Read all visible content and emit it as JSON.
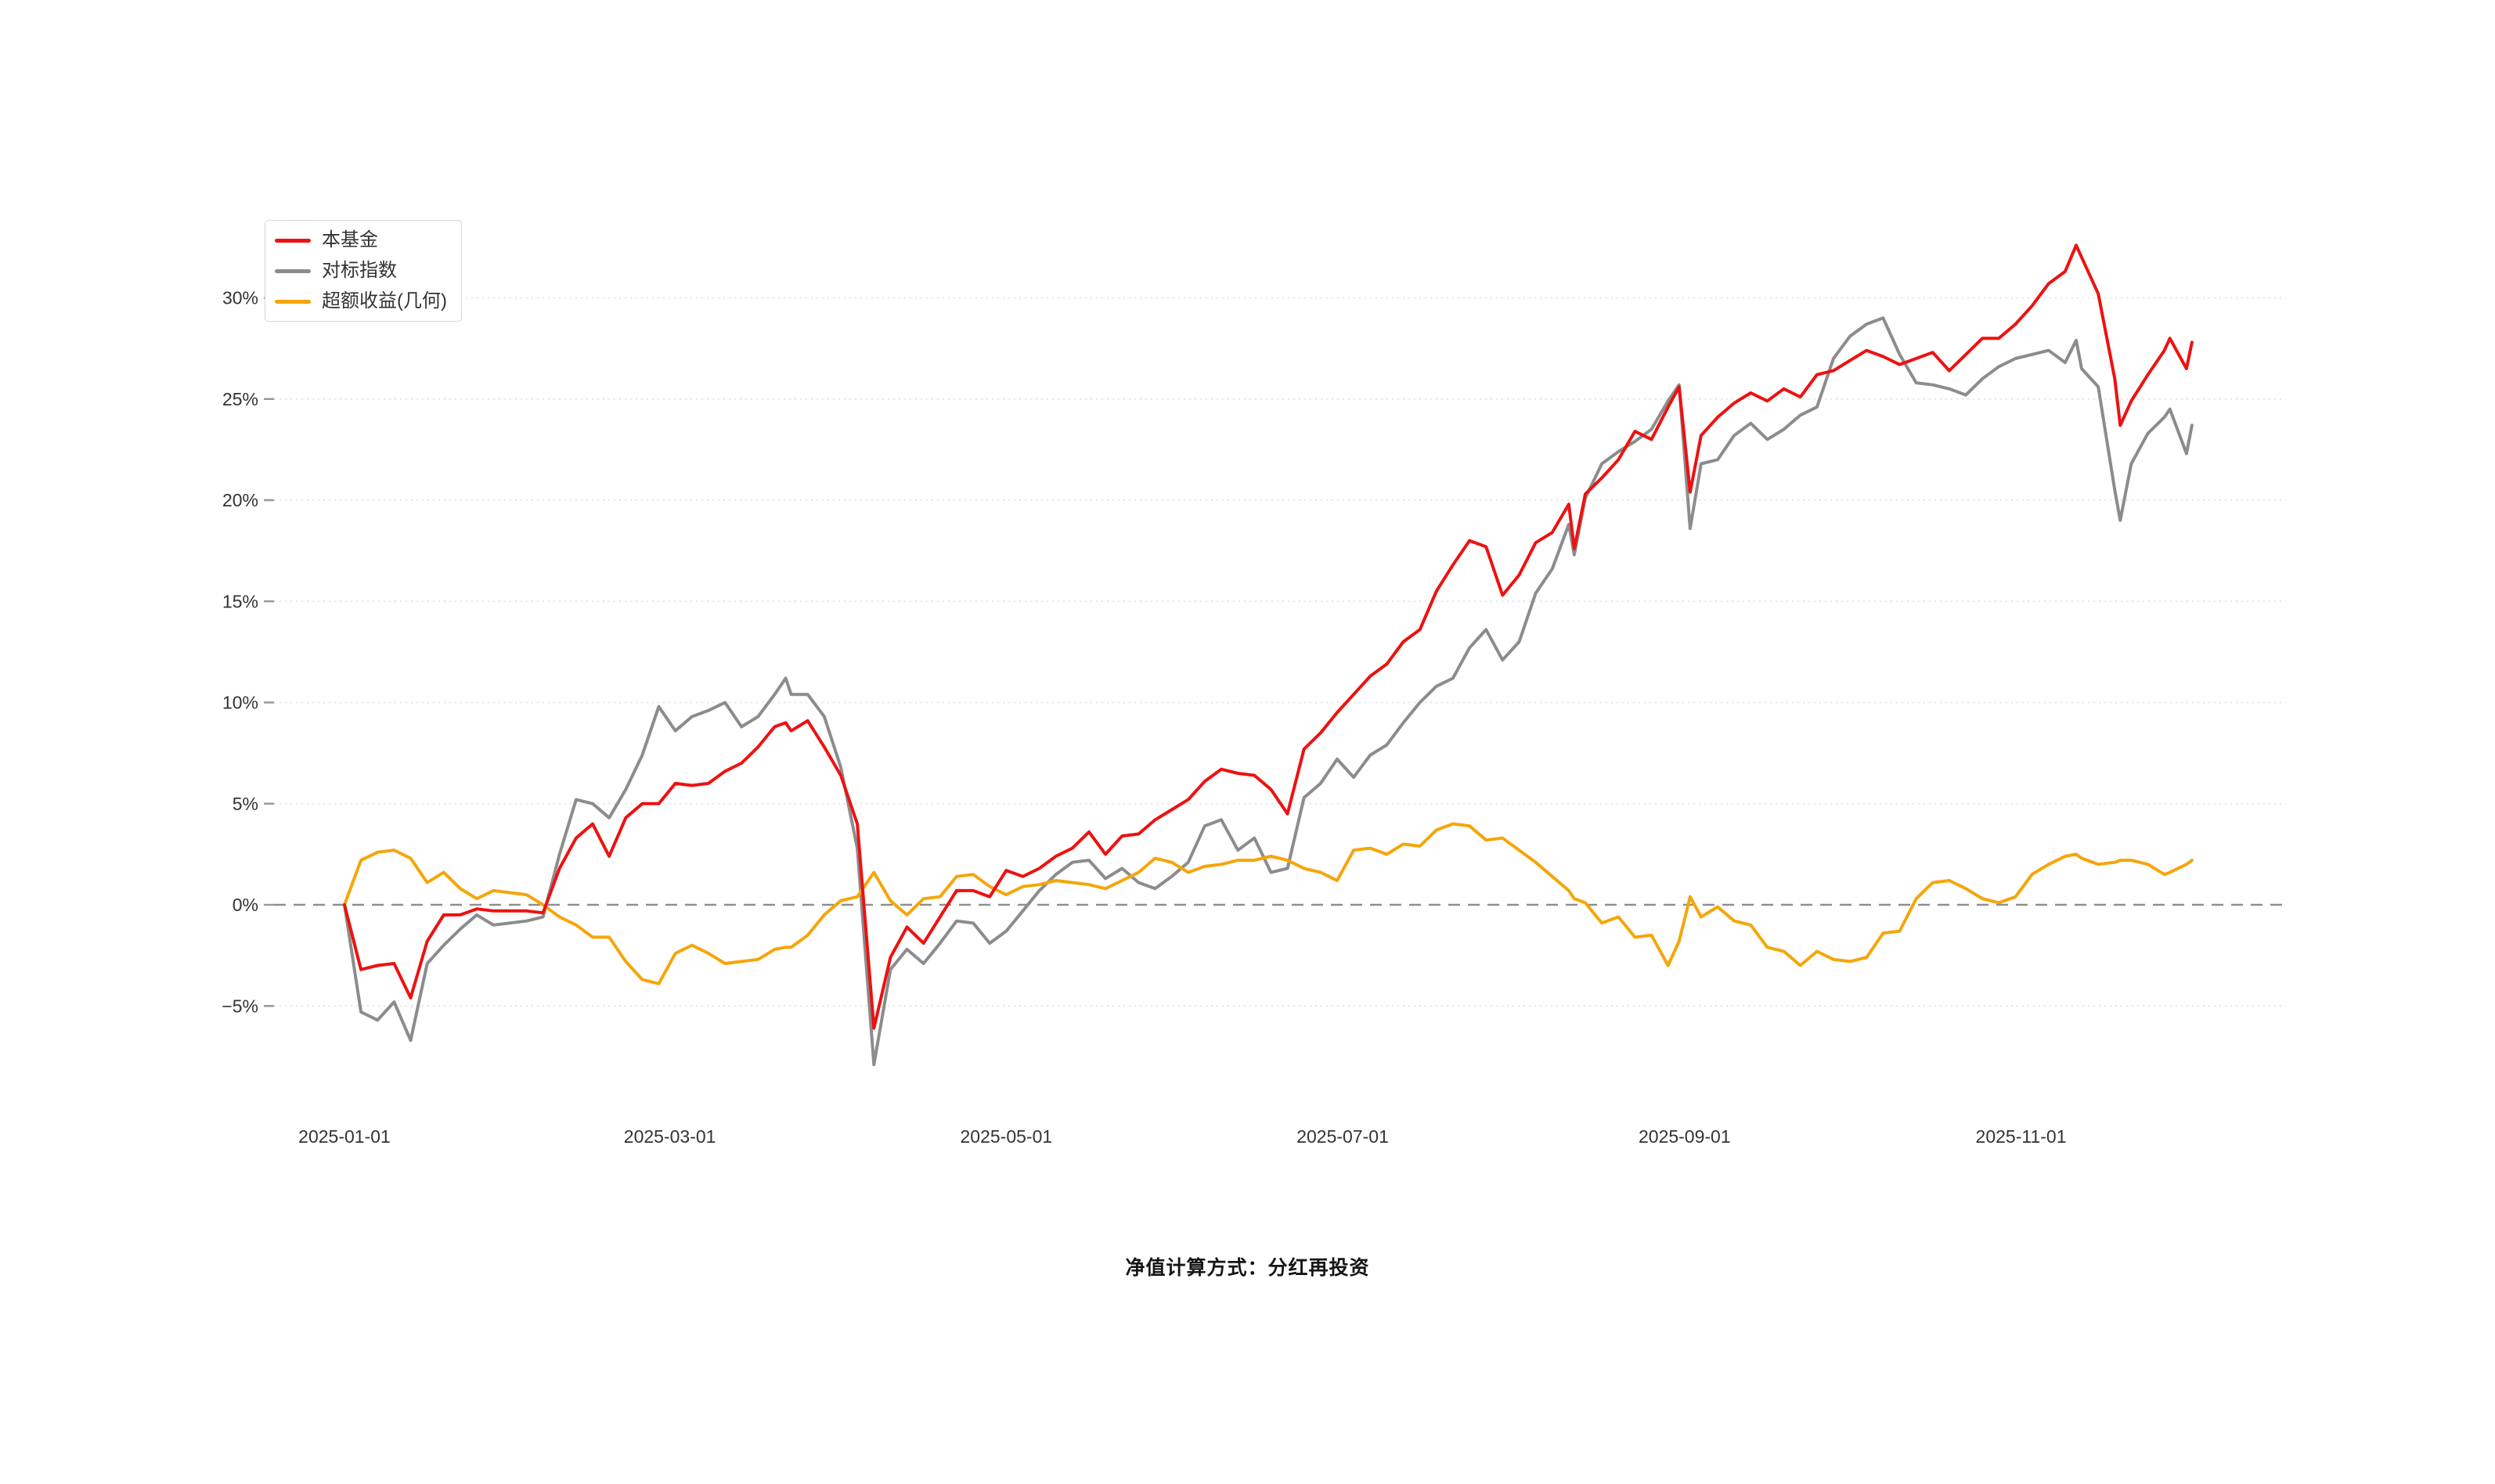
{
  "page": {
    "background": "#ffffff"
  },
  "caption": {
    "text": "净值计算方式：分红再投资"
  },
  "legend": {
    "items": [
      {
        "label": "本基金",
        "color": "#ee1111"
      },
      {
        "label": "对标指数",
        "color": "#8c8c8c"
      },
      {
        "label": "超额收益(几何)",
        "color": "#f5a60a"
      }
    ]
  },
  "chart_data": {
    "type": "line",
    "title": "",
    "xlabel": "",
    "ylabel": "",
    "start_date": "2025-01-01",
    "x_unit": "days_since_start",
    "ylim": [
      -8,
      33
    ],
    "grid": true,
    "zero_line_dashed": true,
    "legend_position": "top-left",
    "y_ticks": [
      30,
      25,
      20,
      15,
      10,
      5,
      0,
      -5
    ],
    "y_tick_labels": [
      "30%",
      "25%",
      "20%",
      "15%",
      "10%",
      "5%",
      "0%",
      "−5%"
    ],
    "x_ticks": [
      {
        "day": 0,
        "label": "2025-01-01"
      },
      {
        "day": 59,
        "label": "2025-03-01"
      },
      {
        "day": 120,
        "label": "2025-05-01"
      },
      {
        "day": 181,
        "label": "2025-07-01"
      },
      {
        "day": 243,
        "label": "2025-09-01"
      },
      {
        "day": 304,
        "label": "2025-11-01"
      }
    ],
    "x_days": [
      0,
      3,
      6,
      9,
      12,
      15,
      18,
      21,
      24,
      27,
      30,
      33,
      36,
      39,
      42,
      45,
      48,
      51,
      54,
      57,
      60,
      63,
      66,
      69,
      72,
      75,
      78,
      80,
      81,
      84,
      87,
      90,
      93,
      96,
      99,
      102,
      105,
      108,
      111,
      114,
      117,
      120,
      123,
      126,
      129,
      132,
      135,
      138,
      141,
      144,
      147,
      150,
      153,
      156,
      159,
      162,
      165,
      168,
      171,
      174,
      177,
      180,
      183,
      186,
      189,
      192,
      195,
      198,
      201,
      204,
      207,
      210,
      213,
      216,
      219,
      222,
      223,
      225,
      228,
      231,
      234,
      237,
      240,
      242,
      244,
      246,
      249,
      252,
      255,
      258,
      261,
      264,
      267,
      270,
      273,
      276,
      279,
      282,
      285,
      288,
      291,
      294,
      297,
      300,
      303,
      306,
      309,
      312,
      314,
      315,
      318,
      321,
      322,
      324,
      327,
      330,
      331,
      334,
      335
    ],
    "series": [
      {
        "name": "本基金",
        "color": "#ee1111",
        "values": [
          0.0,
          -3.2,
          -3.0,
          -2.9,
          -4.6,
          -1.8,
          -0.5,
          -0.5,
          -0.2,
          -0.3,
          -0.3,
          -0.3,
          -0.4,
          1.8,
          3.3,
          4.0,
          2.4,
          4.3,
          5.0,
          5.0,
          6.0,
          5.9,
          6.0,
          6.6,
          7.0,
          7.8,
          8.8,
          9.0,
          8.6,
          9.1,
          7.8,
          6.4,
          4.0,
          -6.1,
          -2.6,
          -1.1,
          -1.9,
          -0.6,
          0.7,
          0.7,
          0.4,
          1.7,
          1.4,
          1.8,
          2.4,
          2.8,
          3.6,
          2.5,
          3.4,
          3.5,
          4.2,
          4.7,
          5.2,
          6.1,
          6.7,
          6.5,
          6.4,
          5.7,
          4.5,
          7.7,
          8.5,
          9.5,
          10.4,
          11.3,
          11.9,
          13.0,
          13.6,
          15.5,
          16.8,
          18.0,
          17.7,
          15.3,
          16.3,
          17.9,
          18.4,
          19.8,
          17.6,
          20.3,
          21.1,
          22.0,
          23.4,
          23.0,
          24.6,
          25.6,
          20.4,
          23.2,
          24.1,
          24.8,
          25.3,
          24.9,
          25.5,
          25.1,
          26.2,
          26.4,
          26.9,
          27.4,
          27.1,
          26.7,
          27.0,
          27.3,
          26.4,
          27.2,
          28.0,
          28.0,
          28.7,
          29.6,
          30.7,
          31.3,
          32.6,
          32.0,
          30.2,
          26.0,
          23.7,
          24.9,
          26.2,
          27.4,
          28.0,
          26.5,
          27.8
        ]
      },
      {
        "name": "对标指数",
        "color": "#8c8c8c",
        "values": [
          0.0,
          -5.3,
          -5.7,
          -4.8,
          -6.7,
          -2.9,
          -2.0,
          -1.2,
          -0.5,
          -1.0,
          -0.9,
          -0.8,
          -0.6,
          2.5,
          5.2,
          5.0,
          4.3,
          5.7,
          7.4,
          9.8,
          8.6,
          9.3,
          9.6,
          10.0,
          8.8,
          9.3,
          10.4,
          11.2,
          10.4,
          10.4,
          9.3,
          6.8,
          2.8,
          -7.9,
          -3.2,
          -2.2,
          -2.9,
          -1.9,
          -0.8,
          -0.9,
          -1.9,
          -1.3,
          -0.3,
          0.7,
          1.5,
          2.1,
          2.2,
          1.3,
          1.8,
          1.1,
          0.8,
          1.4,
          2.1,
          3.9,
          4.2,
          2.7,
          3.3,
          1.6,
          1.8,
          5.3,
          6.0,
          7.2,
          6.3,
          7.4,
          7.9,
          9.0,
          10.0,
          10.8,
          11.2,
          12.7,
          13.6,
          12.1,
          13.0,
          15.4,
          16.6,
          18.8,
          17.3,
          20.1,
          21.8,
          22.4,
          22.9,
          23.5,
          24.9,
          25.7,
          18.6,
          21.8,
          22.0,
          23.2,
          23.8,
          23.0,
          23.5,
          24.2,
          24.6,
          27.0,
          28.1,
          28.7,
          29.0,
          27.2,
          25.8,
          25.7,
          25.5,
          25.2,
          26.0,
          26.6,
          27.0,
          27.2,
          27.4,
          26.8,
          27.9,
          26.5,
          25.6,
          20.5,
          19.0,
          21.8,
          23.3,
          24.1,
          24.5,
          22.3,
          23.7
        ]
      },
      {
        "name": "超额收益(几何)",
        "color": "#f5a60a",
        "values": [
          0.0,
          2.2,
          2.6,
          2.7,
          2.3,
          1.1,
          1.6,
          0.8,
          0.3,
          0.7,
          0.6,
          0.5,
          0.0,
          -0.6,
          -1.0,
          -1.6,
          -1.6,
          -2.8,
          -3.7,
          -3.9,
          -2.4,
          -2.0,
          -2.4,
          -2.9,
          -2.8,
          -2.7,
          -2.2,
          -2.1,
          -2.1,
          -1.5,
          -0.5,
          0.2,
          0.4,
          1.6,
          0.2,
          -0.5,
          0.3,
          0.4,
          1.4,
          1.5,
          0.9,
          0.5,
          0.9,
          1.0,
          1.2,
          1.1,
          1.0,
          0.8,
          1.2,
          1.6,
          2.3,
          2.1,
          1.6,
          1.9,
          2.0,
          2.2,
          2.2,
          2.4,
          2.2,
          1.8,
          1.6,
          1.2,
          2.7,
          2.8,
          2.5,
          3.0,
          2.9,
          3.7,
          4.0,
          3.9,
          3.2,
          3.3,
          2.7,
          2.1,
          1.4,
          0.7,
          0.3,
          0.1,
          -0.9,
          -0.6,
          -1.6,
          -1.5,
          -3.0,
          -1.8,
          0.4,
          -0.6,
          -0.1,
          -0.8,
          -1.0,
          -2.1,
          -2.3,
          -3.0,
          -2.3,
          -2.7,
          -2.8,
          -2.6,
          -1.4,
          -1.3,
          0.3,
          1.1,
          1.2,
          0.8,
          0.3,
          0.1,
          0.4,
          1.5,
          2.0,
          2.4,
          2.5,
          2.3,
          2.0,
          2.1,
          2.2,
          2.2,
          2.0,
          1.5,
          1.6,
          2.0,
          2.2
        ]
      }
    ]
  }
}
